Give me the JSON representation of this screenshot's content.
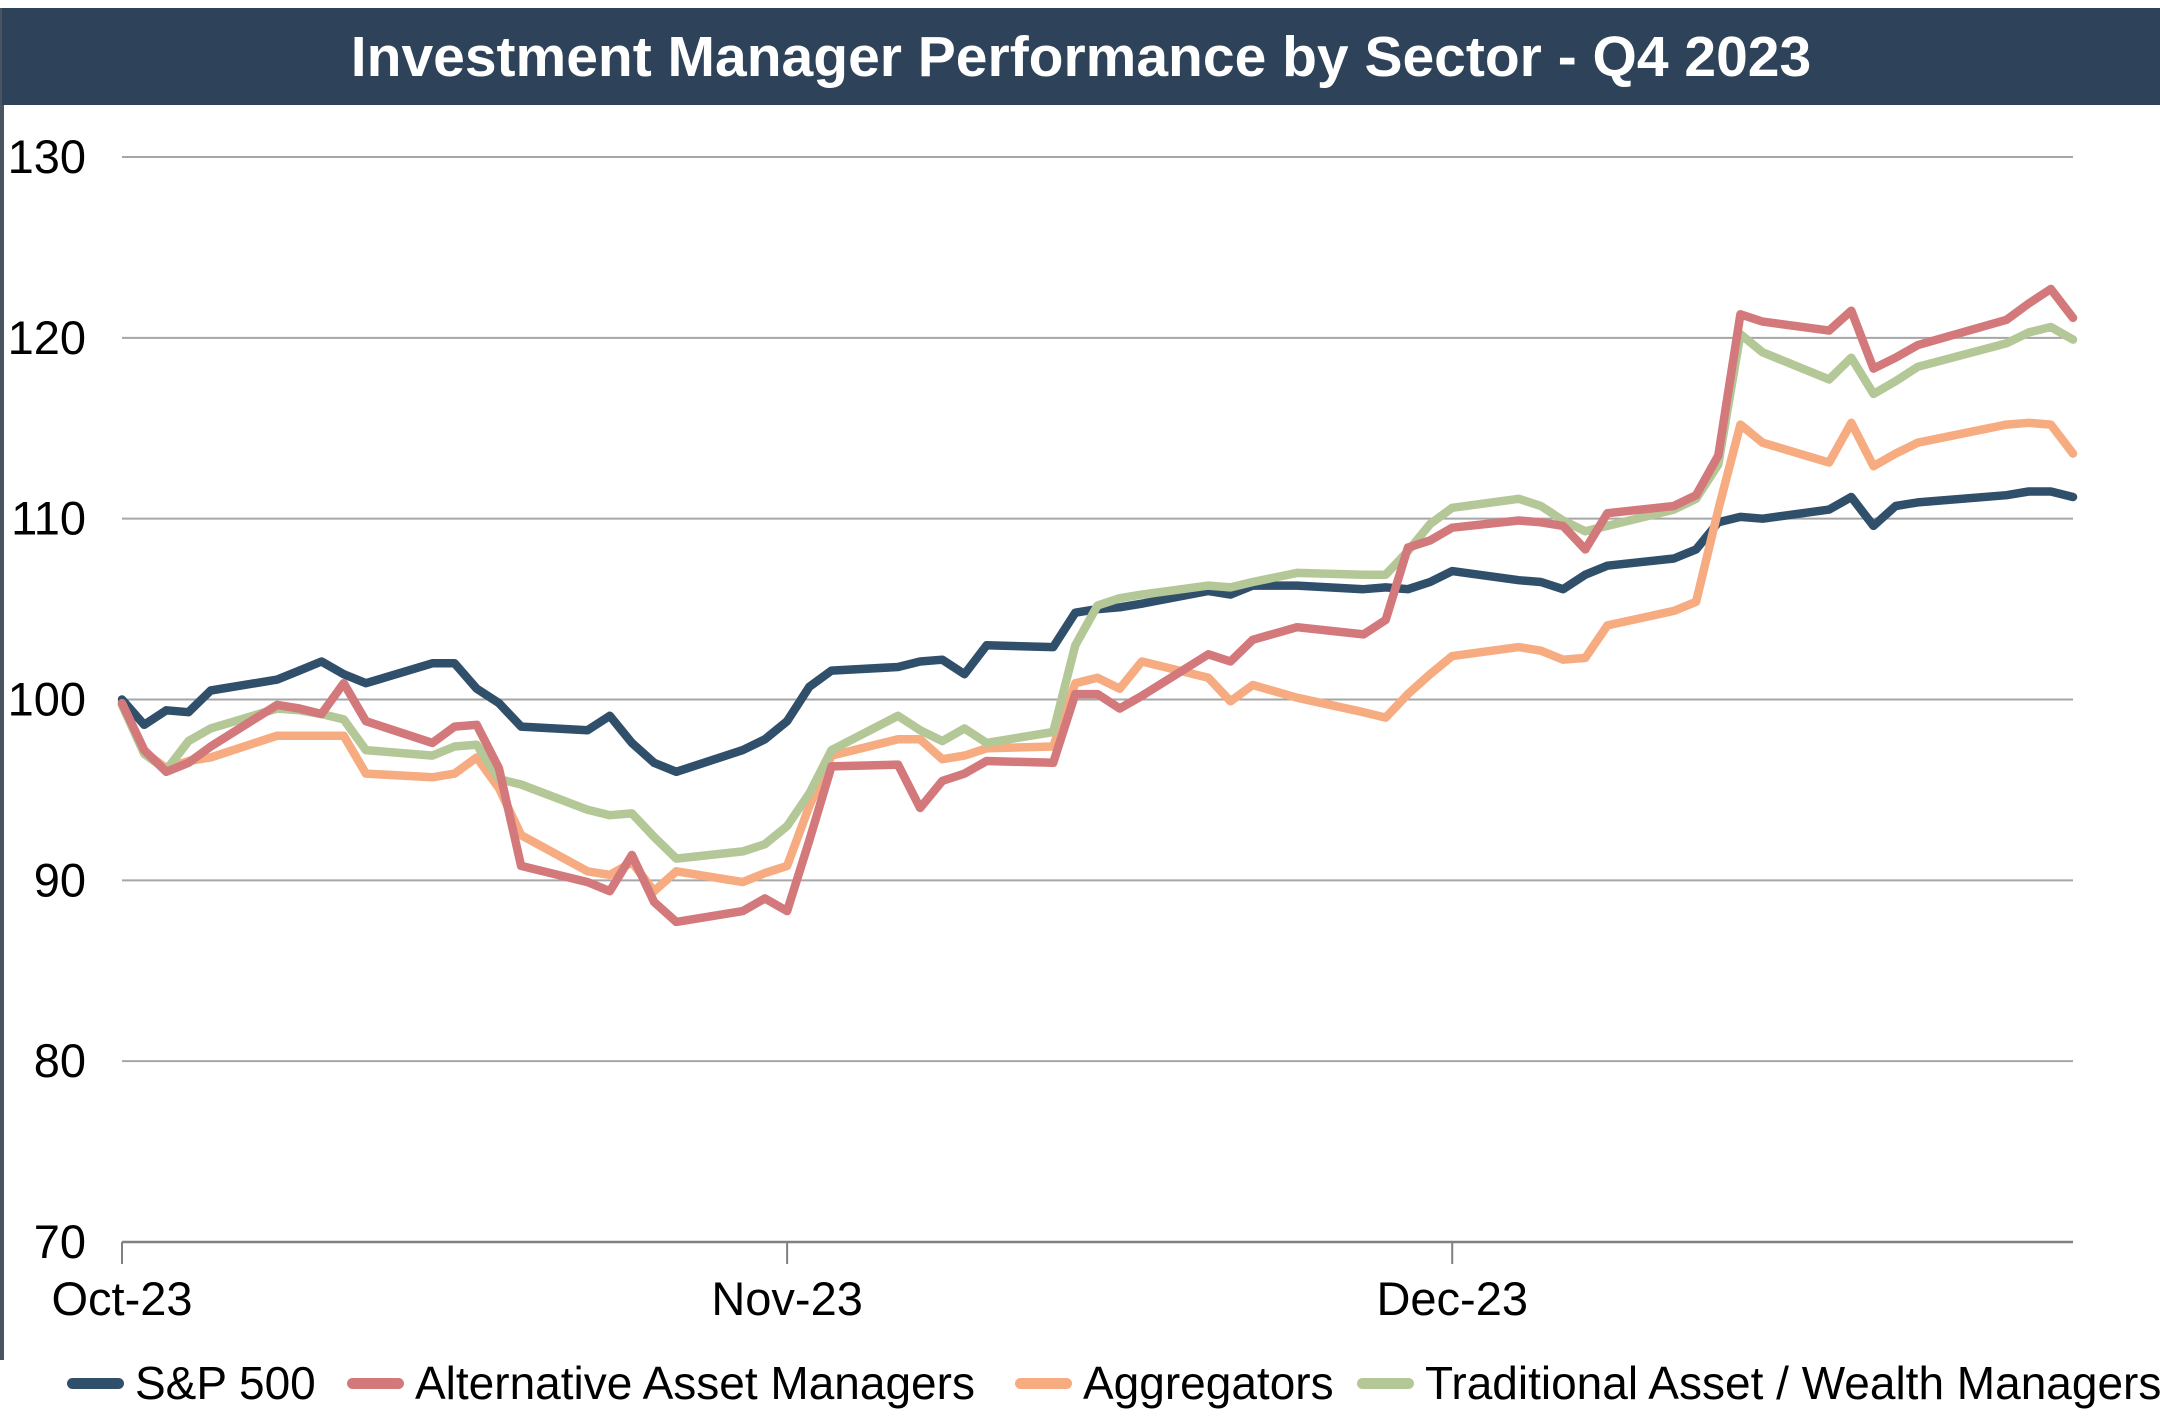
{
  "title": "Investment Manager Performance by Sector - Q4 2023",
  "colors": {
    "title_bar_bg": "#2e4359",
    "title_text": "#ffffff",
    "plot_bg": "#ffffff",
    "gridline": "#a6a6a6",
    "axis_line": "#808080",
    "tick_label": "#000000",
    "figure_left_border": "#4a5360"
  },
  "chart_data": {
    "type": "line",
    "title": "Investment Manager Performance by Sector - Q4 2023",
    "xlabel": "",
    "ylabel": "",
    "ylim": [
      70,
      130
    ],
    "y_ticks": [
      70,
      80,
      90,
      100,
      110,
      120,
      130
    ],
    "grid": "horizontal",
    "legend_position": "bottom",
    "index_base": 100,
    "x_tick_labels": [
      "Oct-23",
      "Nov-23",
      "Dec-23"
    ],
    "x_tick_dates": [
      "2023-10-02",
      "2023-11-01",
      "2023-12-01"
    ],
    "x": [
      "2023-10-02",
      "2023-10-03",
      "2023-10-04",
      "2023-10-05",
      "2023-10-06",
      "2023-10-09",
      "2023-10-10",
      "2023-10-11",
      "2023-10-12",
      "2023-10-13",
      "2023-10-16",
      "2023-10-17",
      "2023-10-18",
      "2023-10-19",
      "2023-10-20",
      "2023-10-23",
      "2023-10-24",
      "2023-10-25",
      "2023-10-26",
      "2023-10-27",
      "2023-10-30",
      "2023-10-31",
      "2023-11-01",
      "2023-11-02",
      "2023-11-03",
      "2023-11-06",
      "2023-11-07",
      "2023-11-08",
      "2023-11-09",
      "2023-11-10",
      "2023-11-13",
      "2023-11-14",
      "2023-11-15",
      "2023-11-16",
      "2023-11-17",
      "2023-11-20",
      "2023-11-21",
      "2023-11-22",
      "2023-11-24",
      "2023-11-27",
      "2023-11-28",
      "2023-11-29",
      "2023-11-30",
      "2023-12-01",
      "2023-12-04",
      "2023-12-05",
      "2023-12-06",
      "2023-12-07",
      "2023-12-08",
      "2023-12-11",
      "2023-12-12",
      "2023-12-13",
      "2023-12-14",
      "2023-12-15",
      "2023-12-18",
      "2023-12-19",
      "2023-12-20",
      "2023-12-21",
      "2023-12-22",
      "2023-12-26",
      "2023-12-27",
      "2023-12-28",
      "2023-12-29"
    ],
    "series": [
      {
        "name": "S&P 500",
        "color": "#304f6b",
        "values": [
          100.0,
          98.6,
          99.4,
          99.3,
          100.5,
          101.1,
          101.6,
          102.1,
          101.4,
          100.9,
          102.0,
          102.0,
          100.6,
          99.8,
          98.5,
          98.3,
          99.1,
          97.6,
          96.5,
          96.0,
          97.2,
          97.8,
          98.8,
          100.7,
          101.6,
          101.8,
          102.1,
          102.2,
          101.4,
          103.0,
          102.9,
          104.8,
          105.0,
          105.1,
          105.3,
          106.0,
          105.8,
          106.3,
          106.3,
          106.1,
          106.2,
          106.1,
          106.5,
          107.1,
          106.6,
          106.5,
          106.1,
          106.9,
          107.4,
          107.8,
          108.3,
          109.8,
          110.1,
          110.0,
          110.5,
          111.2,
          109.6,
          110.7,
          110.9,
          111.3,
          111.5,
          111.5,
          111.2
        ]
      },
      {
        "name": "Alternative Asset Managers",
        "color": "#d3787b",
        "values": [
          99.8,
          97.2,
          96.0,
          96.5,
          97.4,
          99.7,
          99.5,
          99.2,
          100.9,
          98.8,
          97.6,
          98.5,
          98.6,
          96.2,
          90.8,
          89.9,
          89.4,
          91.4,
          88.8,
          87.7,
          88.3,
          89.0,
          88.3,
          92.2,
          96.3,
          96.4,
          94.0,
          95.5,
          95.9,
          96.6,
          96.5,
          100.3,
          100.3,
          99.5,
          100.2,
          102.5,
          102.1,
          103.3,
          104.0,
          103.6,
          104.4,
          108.4,
          108.8,
          109.5,
          109.9,
          109.8,
          109.6,
          108.3,
          110.3,
          110.7,
          111.3,
          113.5,
          121.3,
          120.9,
          120.4,
          121.5,
          118.3,
          118.9,
          119.6,
          121.0,
          121.9,
          122.7,
          121.1
        ]
      },
      {
        "name": "Aggregators",
        "color": "#f7ab80",
        "values": [
          99.7,
          97.1,
          96.2,
          96.6,
          96.8,
          98.0,
          98.0,
          98.0,
          98.0,
          95.9,
          95.7,
          95.9,
          96.8,
          95.1,
          92.5,
          90.5,
          90.3,
          91.0,
          89.4,
          90.5,
          89.9,
          90.4,
          90.8,
          94.1,
          96.9,
          97.8,
          97.8,
          96.7,
          96.9,
          97.3,
          97.4,
          100.9,
          101.2,
          100.6,
          102.1,
          101.2,
          99.9,
          100.8,
          100.1,
          99.3,
          99.0,
          100.3,
          101.4,
          102.4,
          102.9,
          102.7,
          102.2,
          102.3,
          104.1,
          104.9,
          105.4,
          110.5,
          115.2,
          114.2,
          113.1,
          115.3,
          112.9,
          113.6,
          114.2,
          115.2,
          115.3,
          115.2,
          113.6
        ]
      },
      {
        "name": "Traditional Asset / Wealth Managers",
        "color": "#b4c797",
        "values": [
          99.7,
          97.0,
          96.1,
          97.7,
          98.4,
          99.5,
          99.4,
          99.2,
          98.9,
          97.2,
          96.9,
          97.4,
          97.5,
          95.6,
          95.3,
          93.9,
          93.6,
          93.7,
          92.4,
          91.2,
          91.6,
          92.0,
          93.0,
          94.8,
          97.2,
          99.1,
          98.3,
          97.7,
          98.4,
          97.6,
          98.2,
          103.0,
          105.2,
          105.6,
          105.8,
          106.3,
          106.2,
          106.5,
          107.0,
          106.9,
          106.9,
          108.2,
          109.7,
          110.6,
          111.1,
          110.7,
          109.9,
          109.3,
          109.6,
          110.5,
          111.1,
          113.0,
          120.2,
          119.2,
          117.7,
          118.9,
          116.9,
          117.6,
          118.4,
          119.7,
          120.3,
          120.6,
          119.9
        ]
      }
    ]
  },
  "legend": {
    "items": [
      {
        "label": "S&P 500"
      },
      {
        "label": "Alternative Asset Managers"
      },
      {
        "label": "Aggregators"
      },
      {
        "label": "Traditional Asset / Wealth Managers"
      }
    ]
  }
}
